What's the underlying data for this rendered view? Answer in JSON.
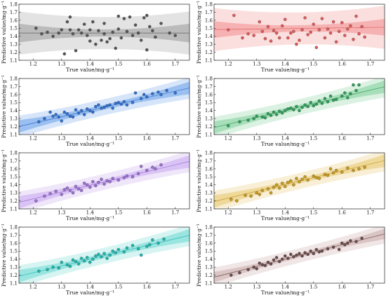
{
  "chart_data": [
    {
      "type": "scatter",
      "xlabel": "True value/mg·g⁻¹",
      "ylabel": "Predictive value/mg·g⁻¹",
      "xlim": [
        1.15,
        1.75
      ],
      "ylim": [
        1.1,
        1.8
      ],
      "xticks": [
        "1.2",
        "1.3",
        "1.4",
        "1.5",
        "1.6",
        "1.7"
      ],
      "yticks": [
        "1.1",
        "1.2",
        "1.3",
        "1.4",
        "1.5",
        "1.6",
        "1.7",
        "1.8"
      ],
      "color": "#555555",
      "band_color": "#9a9a9a",
      "fit": {
        "slope": 0.0,
        "intercept": 1.44,
        "ci": 0.045,
        "pi": 0.2
      },
      "series": [
        {
          "x": [
            1.21,
            1.23,
            1.25,
            1.27,
            1.29,
            1.3,
            1.31,
            1.32,
            1.33,
            1.33,
            1.34,
            1.35,
            1.36,
            1.37,
            1.38,
            1.39,
            1.4,
            1.4,
            1.41,
            1.42,
            1.43,
            1.44,
            1.45,
            1.45,
            1.46,
            1.47,
            1.48,
            1.49,
            1.5,
            1.5,
            1.51,
            1.52,
            1.53,
            1.54,
            1.55,
            1.56,
            1.57,
            1.58,
            1.59,
            1.6,
            1.6,
            1.61,
            1.62,
            1.63,
            1.65,
            1.68,
            1.7
          ],
          "y": [
            1.5,
            1.43,
            1.45,
            1.4,
            1.44,
            1.48,
            1.18,
            1.58,
            1.64,
            1.48,
            1.43,
            1.22,
            1.48,
            1.44,
            1.55,
            1.41,
            1.48,
            1.34,
            1.58,
            1.3,
            1.47,
            1.35,
            1.43,
            1.56,
            1.33,
            1.37,
            1.45,
            1.25,
            1.65,
            1.49,
            1.38,
            1.62,
            1.46,
            1.64,
            1.41,
            1.54,
            1.44,
            1.35,
            1.63,
            1.66,
            1.23,
            1.52,
            1.47,
            1.39,
            1.56,
            1.44,
            1.41
          ]
        }
      ]
    },
    {
      "type": "scatter",
      "xlabel": "True value/mg·g⁻¹",
      "ylabel": "Predictive value/mg·g⁻¹",
      "xlim": [
        1.15,
        1.75
      ],
      "ylim": [
        1.1,
        1.8
      ],
      "xticks": [
        "1.2",
        "1.3",
        "1.4",
        "1.5",
        "1.6",
        "1.7"
      ],
      "yticks": [
        "1.1",
        "1.2",
        "1.3",
        "1.4",
        "1.5",
        "1.6",
        "1.7",
        "1.8"
      ],
      "color": "#e05a5a",
      "band_color": "#f28c8c",
      "fit": {
        "slope": 0.05,
        "intercept": 1.425,
        "ci": 0.04,
        "pi": 0.2
      },
      "series": [
        {
          "x": [
            1.2,
            1.22,
            1.25,
            1.27,
            1.29,
            1.31,
            1.32,
            1.33,
            1.34,
            1.35,
            1.36,
            1.37,
            1.38,
            1.39,
            1.4,
            1.41,
            1.42,
            1.43,
            1.44,
            1.45,
            1.46,
            1.47,
            1.48,
            1.49,
            1.5,
            1.51,
            1.52,
            1.53,
            1.54,
            1.55,
            1.56,
            1.57,
            1.58,
            1.59,
            1.6,
            1.61,
            1.62,
            1.63,
            1.64,
            1.65,
            1.66,
            1.67,
            1.68
          ],
          "y": [
            1.48,
            1.66,
            1.38,
            1.43,
            1.41,
            1.58,
            1.46,
            1.37,
            1.52,
            1.34,
            1.47,
            1.44,
            1.38,
            1.53,
            1.61,
            1.38,
            1.44,
            1.46,
            1.3,
            1.35,
            1.48,
            1.63,
            1.42,
            1.45,
            1.55,
            1.26,
            1.48,
            1.62,
            1.38,
            1.49,
            1.44,
            1.58,
            1.33,
            1.46,
            1.57,
            1.41,
            1.49,
            1.53,
            1.36,
            1.65,
            1.43,
            1.52,
            1.39
          ]
        }
      ]
    },
    {
      "type": "scatter",
      "xlabel": "True value/mg·g⁻¹",
      "ylabel": "Predictive value/mg·g⁻¹",
      "xlim": [
        1.15,
        1.75
      ],
      "ylim": [
        1.1,
        1.8
      ],
      "xticks": [
        "1.2",
        "1.3",
        "1.4",
        "1.5",
        "1.6",
        "1.7"
      ],
      "yticks": [
        "1.1",
        "1.2",
        "1.3",
        "1.4",
        "1.5",
        "1.6",
        "1.7",
        "1.8"
      ],
      "color": "#2f6fd0",
      "band_color": "#6aa0ea",
      "fit": {
        "slope": 0.8,
        "intercept": 0.282,
        "ci": 0.03,
        "pi": 0.1
      },
      "series": [
        {
          "x": [
            1.22,
            1.24,
            1.26,
            1.27,
            1.28,
            1.29,
            1.3,
            1.31,
            1.32,
            1.33,
            1.34,
            1.35,
            1.36,
            1.37,
            1.38,
            1.39,
            1.4,
            1.41,
            1.42,
            1.43,
            1.44,
            1.45,
            1.46,
            1.47,
            1.48,
            1.49,
            1.5,
            1.51,
            1.52,
            1.53,
            1.55,
            1.56,
            1.58,
            1.59,
            1.6,
            1.62,
            1.64,
            1.65,
            1.67,
            1.7
          ],
          "y": [
            1.26,
            1.3,
            1.38,
            1.33,
            1.35,
            1.32,
            1.27,
            1.38,
            1.36,
            1.33,
            1.32,
            1.41,
            1.37,
            1.4,
            1.35,
            1.42,
            1.4,
            1.38,
            1.45,
            1.47,
            1.43,
            1.44,
            1.46,
            1.47,
            1.43,
            1.49,
            1.5,
            1.48,
            1.51,
            1.47,
            1.5,
            1.62,
            1.55,
            1.6,
            1.57,
            1.61,
            1.63,
            1.6,
            1.65,
            1.62
          ]
        }
      ]
    },
    {
      "type": "scatter",
      "xlabel": "True value/mg·g⁻¹",
      "ylabel": "Predictive value/mg·g⁻¹",
      "xlim": [
        1.15,
        1.75
      ],
      "ylim": [
        1.1,
        1.8
      ],
      "xticks": [
        "1.2",
        "1.3",
        "1.4",
        "1.5",
        "1.6",
        "1.7"
      ],
      "yticks": [
        "1.1",
        "1.2",
        "1.3",
        "1.4",
        "1.5",
        "1.6",
        "1.7",
        "1.8"
      ],
      "color": "#2e9e5a",
      "band_color": "#7dcf99",
      "fit": {
        "slope": 0.85,
        "intercept": 0.21,
        "ci": 0.03,
        "pi": 0.1
      },
      "series": [
        {
          "x": [
            1.2,
            1.24,
            1.27,
            1.29,
            1.3,
            1.32,
            1.33,
            1.34,
            1.35,
            1.36,
            1.37,
            1.38,
            1.39,
            1.4,
            1.41,
            1.42,
            1.43,
            1.44,
            1.45,
            1.46,
            1.47,
            1.48,
            1.49,
            1.5,
            1.51,
            1.52,
            1.53,
            1.54,
            1.55,
            1.56,
            1.57,
            1.58,
            1.6,
            1.61,
            1.62,
            1.63,
            1.64,
            1.65,
            1.66
          ],
          "y": [
            1.21,
            1.26,
            1.28,
            1.3,
            1.33,
            1.32,
            1.31,
            1.36,
            1.34,
            1.38,
            1.35,
            1.39,
            1.37,
            1.4,
            1.42,
            1.43,
            1.41,
            1.45,
            1.4,
            1.44,
            1.47,
            1.45,
            1.5,
            1.46,
            1.48,
            1.52,
            1.49,
            1.55,
            1.51,
            1.58,
            1.53,
            1.54,
            1.58,
            1.62,
            1.56,
            1.61,
            1.72,
            1.65,
            1.72
          ]
        }
      ]
    },
    {
      "type": "scatter",
      "xlabel": "True value/mg·g⁻¹",
      "ylabel": "Predictive value/mg·g⁻¹",
      "xlim": [
        1.15,
        1.75
      ],
      "ylim": [
        1.1,
        1.8
      ],
      "xticks": [
        "1.2",
        "1.3",
        "1.4",
        "1.5",
        "1.6",
        "1.7"
      ],
      "yticks": [
        "1.1",
        "1.2",
        "1.3",
        "1.4",
        "1.5",
        "1.6",
        "1.7",
        "1.8"
      ],
      "color": "#9b6fd3",
      "band_color": "#c7a6ee",
      "fit": {
        "slope": 0.85,
        "intercept": 0.205,
        "ci": 0.03,
        "pi": 0.1
      },
      "series": [
        {
          "x": [
            1.21,
            1.24,
            1.26,
            1.28,
            1.3,
            1.31,
            1.32,
            1.33,
            1.34,
            1.35,
            1.36,
            1.37,
            1.38,
            1.39,
            1.4,
            1.41,
            1.42,
            1.43,
            1.44,
            1.45,
            1.46,
            1.47,
            1.48,
            1.5,
            1.52,
            1.53,
            1.55,
            1.57,
            1.58,
            1.6,
            1.62,
            1.63,
            1.65
          ],
          "y": [
            1.2,
            1.26,
            1.29,
            1.32,
            1.28,
            1.34,
            1.36,
            1.33,
            1.3,
            1.38,
            1.35,
            1.33,
            1.42,
            1.4,
            1.37,
            1.44,
            1.39,
            1.43,
            1.47,
            1.41,
            1.45,
            1.44,
            1.48,
            1.46,
            1.49,
            1.51,
            1.5,
            1.54,
            1.63,
            1.58,
            1.62,
            1.6,
            1.65
          ]
        }
      ]
    },
    {
      "type": "scatter",
      "xlabel": "True value/mg·g⁻¹",
      "ylabel": "Predictive value/mg·g⁻¹",
      "xlim": [
        1.15,
        1.75
      ],
      "ylim": [
        1.1,
        1.8
      ],
      "xticks": [
        "1.2",
        "1.3",
        "1.4",
        "1.5",
        "1.6",
        "1.7"
      ],
      "yticks": [
        "1.1",
        "1.2",
        "1.3",
        "1.4",
        "1.5",
        "1.6",
        "1.7",
        "1.8"
      ],
      "color": "#c89a1e",
      "band_color": "#e6c46a",
      "fit": {
        "slope": 0.85,
        "intercept": 0.215,
        "ci": 0.03,
        "pi": 0.1
      },
      "series": [
        {
          "x": [
            1.21,
            1.23,
            1.26,
            1.28,
            1.3,
            1.31,
            1.32,
            1.34,
            1.35,
            1.36,
            1.37,
            1.38,
            1.39,
            1.4,
            1.41,
            1.42,
            1.43,
            1.44,
            1.45,
            1.46,
            1.47,
            1.48,
            1.5,
            1.51,
            1.52,
            1.54,
            1.55,
            1.56,
            1.57,
            1.58,
            1.6,
            1.62,
            1.64,
            1.66,
            1.68
          ],
          "y": [
            1.22,
            1.2,
            1.27,
            1.26,
            1.3,
            1.28,
            1.33,
            1.35,
            1.3,
            1.37,
            1.4,
            1.36,
            1.42,
            1.38,
            1.43,
            1.45,
            1.4,
            1.48,
            1.44,
            1.47,
            1.5,
            1.46,
            1.51,
            1.49,
            1.48,
            1.53,
            1.52,
            1.6,
            1.55,
            1.58,
            1.56,
            1.61,
            1.58,
            1.6,
            1.62
          ]
        }
      ]
    },
    {
      "type": "scatter",
      "xlabel": "True value/mg·g⁻¹",
      "ylabel": "Predictive value/mg·g⁻¹",
      "xlim": [
        1.15,
        1.75
      ],
      "ylim": [
        1.1,
        1.8
      ],
      "xticks": [
        "1.2",
        "1.3",
        "1.4",
        "1.5",
        "1.6",
        "1.7"
      ],
      "yticks": [
        "1.1",
        "1.2",
        "1.3",
        "1.4",
        "1.5",
        "1.6",
        "1.7",
        "1.8"
      ],
      "color": "#1fb6b0",
      "band_color": "#6ad8d2",
      "fit": {
        "slope": 0.85,
        "intercept": 0.21,
        "ci": 0.03,
        "pi": 0.1
      },
      "series": [
        {
          "x": [
            1.22,
            1.25,
            1.27,
            1.29,
            1.3,
            1.32,
            1.33,
            1.34,
            1.35,
            1.36,
            1.37,
            1.38,
            1.39,
            1.4,
            1.41,
            1.42,
            1.43,
            1.44,
            1.45,
            1.46,
            1.47,
            1.48,
            1.49,
            1.5,
            1.52,
            1.53,
            1.55,
            1.57,
            1.58,
            1.6,
            1.61,
            1.62,
            1.64,
            1.66
          ],
          "y": [
            1.25,
            1.27,
            1.3,
            1.29,
            1.36,
            1.33,
            1.31,
            1.39,
            1.37,
            1.34,
            1.41,
            1.38,
            1.42,
            1.36,
            1.4,
            1.44,
            1.46,
            1.43,
            1.47,
            1.41,
            1.45,
            1.5,
            1.48,
            1.52,
            1.49,
            1.54,
            1.57,
            1.53,
            1.45,
            1.56,
            1.58,
            1.64,
            1.6,
            1.65
          ]
        }
      ]
    },
    {
      "type": "scatter",
      "xlabel": "True value/mg·g⁻¹",
      "ylabel": "Predictive value/mg·g⁻¹",
      "xlim": [
        1.15,
        1.75
      ],
      "ylim": [
        1.1,
        1.8
      ],
      "xticks": [
        "1.2",
        "1.3",
        "1.4",
        "1.5",
        "1.6",
        "1.7"
      ],
      "yticks": [
        "1.1",
        "1.2",
        "1.3",
        "1.4",
        "1.5",
        "1.6",
        "1.7",
        "1.8"
      ],
      "color": "#6b4a4a",
      "band_color": "#c9a7a7",
      "fit": {
        "slope": 0.9,
        "intercept": 0.14,
        "ci": 0.025,
        "pi": 0.09
      },
      "series": [
        {
          "x": [
            1.21,
            1.24,
            1.27,
            1.29,
            1.3,
            1.31,
            1.32,
            1.33,
            1.34,
            1.35,
            1.36,
            1.37,
            1.38,
            1.39,
            1.4,
            1.41,
            1.42,
            1.43,
            1.44,
            1.45,
            1.46,
            1.47,
            1.48,
            1.49,
            1.5,
            1.51,
            1.52,
            1.53,
            1.55,
            1.57,
            1.59,
            1.6,
            1.61,
            1.62,
            1.63,
            1.65,
            1.67
          ],
          "y": [
            1.2,
            1.23,
            1.27,
            1.3,
            1.28,
            1.35,
            1.33,
            1.32,
            1.36,
            1.34,
            1.39,
            1.42,
            1.37,
            1.4,
            1.44,
            1.41,
            1.46,
            1.43,
            1.45,
            1.47,
            1.44,
            1.48,
            1.46,
            1.5,
            1.47,
            1.52,
            1.49,
            1.5,
            1.53,
            1.55,
            1.52,
            1.6,
            1.58,
            1.6,
            1.63,
            1.62,
            1.66
          ]
        }
      ]
    }
  ]
}
